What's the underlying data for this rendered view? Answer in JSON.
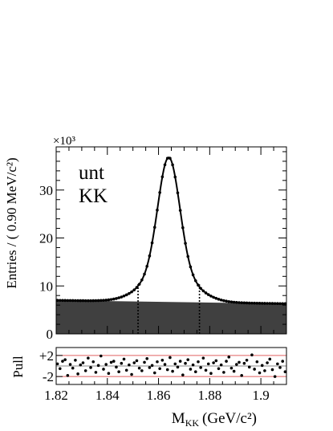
{
  "chart_data": [
    {
      "type": "line",
      "title": "",
      "labels": [
        "unt",
        "KK"
      ],
      "exponent_label": "×10³",
      "ylabel": "Entries / ( 0.90 MeV/c²)",
      "xlim": [
        1.82,
        1.91
      ],
      "ylim": [
        0,
        39
      ],
      "y_scale_factor": 1000,
      "yticks": [
        0,
        10,
        20,
        30
      ],
      "ytick_labels": [
        "0",
        "10",
        "20",
        "30"
      ],
      "signal_window": [
        1.852,
        1.876
      ],
      "series": [
        {
          "role": "fit",
          "color": "#000000",
          "model": "peak",
          "peak_x": 1.864,
          "peak_y": 36.8,
          "width": 0.0042
        },
        {
          "role": "background",
          "color": "#404040",
          "x": [
            1.82,
            1.91
          ],
          "y": [
            7.0,
            6.3
          ]
        }
      ]
    },
    {
      "type": "scatter",
      "ylabel": "Pull",
      "xlabel": "Mₖₖ (GeV/c²)",
      "xlabel_main": "M",
      "xlabel_sub": "KK",
      "xlabel_unit": "(GeV/c²)",
      "xlim": [
        1.82,
        1.91
      ],
      "ylim": [
        -3.5,
        3.5
      ],
      "xticks": [
        1.82,
        1.84,
        1.86,
        1.88,
        1.9
      ],
      "xtick_labels": [
        "1.82",
        "1.84",
        "1.86",
        "1.88",
        "1.9"
      ],
      "yticks": [
        2,
        -2
      ],
      "ytick_labels": [
        "+2",
        "-2"
      ],
      "reference_lines": [
        2,
        0,
        -2
      ],
      "reference_color": "#e06060",
      "values": [
        0.4,
        -0.5,
        0.9,
        1.2,
        -1.8,
        0.3,
        -0.4,
        1.1,
        -1.5,
        0.2,
        0.6,
        -0.9,
        1.5,
        -0.3,
        0.8,
        -1.2,
        0.1,
        1.9,
        -0.6,
        0.3,
        -1.4,
        0.7,
        0.9,
        -0.2,
        -1.1,
        0.5,
        1.3,
        -0.8,
        0.2,
        -1.6,
        0.6,
        1.0,
        -0.4,
        -0.9,
        0.7,
        1.4,
        -0.3,
        0.1,
        -1.3,
        0.8,
        -0.5,
        1.1,
        0.3,
        -0.7,
        1.6,
        -1.0,
        0.4,
        -0.2,
        0.9,
        -1.7,
        0.5,
        1.2,
        -0.6,
        0.2,
        -1.1,
        0.8,
        -0.3,
        1.5,
        -0.8,
        0.4,
        -1.4,
        0.6,
        1.0,
        -0.5,
        0.2,
        -1.2,
        0.9,
        1.7,
        -0.4,
        -1.0,
        0.3,
        0.7,
        -1.8,
        0.5,
        1.1,
        -0.2,
        2.1,
        -0.6,
        0.8,
        -1.3,
        0.1,
        -0.9,
        0.6,
        1.3,
        -0.7,
        -2.0,
        0.4,
        -0.3,
        0.9,
        -1.1
      ]
    }
  ]
}
